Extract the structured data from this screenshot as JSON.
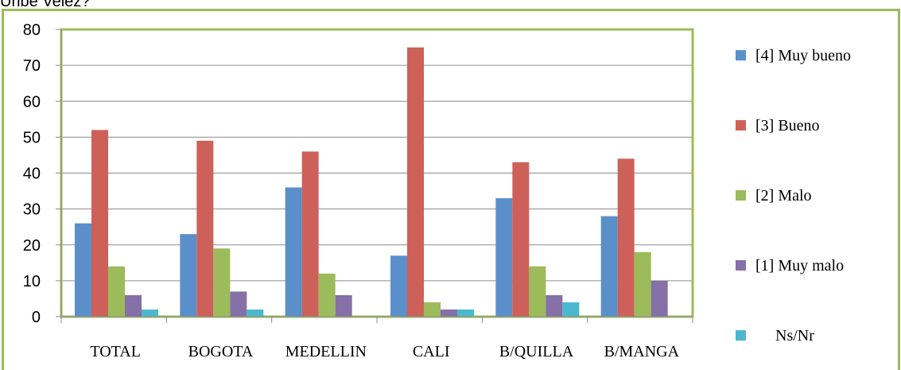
{
  "header_text": "Uribe Velez?",
  "chart_data": {
    "type": "bar",
    "title": "",
    "xlabel": "",
    "ylabel": "",
    "ylim": [
      0,
      80
    ],
    "yticks": [
      "0",
      "10",
      "20",
      "30",
      "40",
      "50",
      "60",
      "70",
      "80"
    ],
    "grid": true,
    "legend_position": "right",
    "categories": [
      "TOTAL",
      "BOGOTA",
      "MEDELLIN",
      "CALI",
      "B/QUILLA",
      "B/MANGA"
    ],
    "series": [
      {
        "name": "[4] Muy bueno",
        "color": "#5b8fc9",
        "values": [
          26,
          23,
          36,
          17,
          33,
          28
        ]
      },
      {
        "name": "[3] Bueno",
        "color": "#cd615a",
        "values": [
          52,
          49,
          46,
          75,
          43,
          44
        ]
      },
      {
        "name": "[2] Malo",
        "color": "#9cbb5a",
        "values": [
          14,
          19,
          12,
          4,
          14,
          18
        ]
      },
      {
        "name": "[1] Muy malo",
        "color": "#8570a8",
        "values": [
          6,
          7,
          6,
          2,
          6,
          10
        ]
      },
      {
        "name": "Ns/Nr",
        "color": "#4bb8cd",
        "values": [
          2,
          2,
          0,
          2,
          4,
          0
        ]
      }
    ],
    "frame_color": "#9cbb5a"
  }
}
